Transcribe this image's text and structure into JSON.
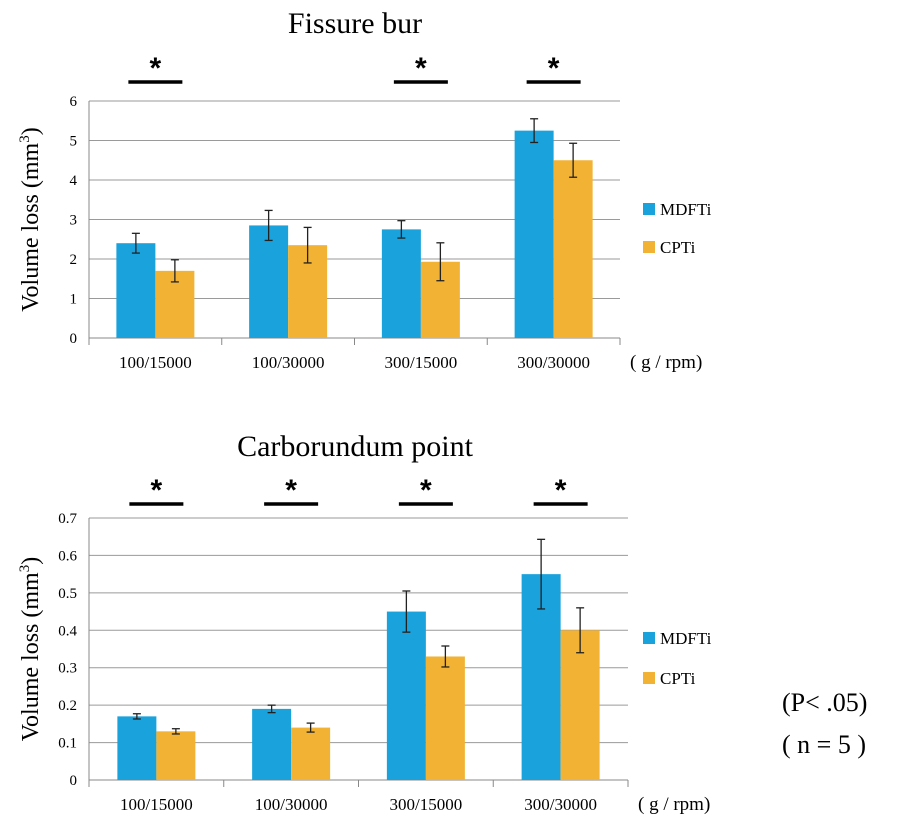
{
  "chart_data": [
    {
      "type": "bar",
      "title": "Fissure bur",
      "ylabel": "Volume loss (mm³)",
      "ylabel_main": "Volume loss (mm",
      "ylabel_sup": "3",
      "ylabel_close": ")",
      "x_unit": "( g / rpm)",
      "categories": [
        "100/15000",
        "100/30000",
        "300/15000",
        "300/30000"
      ],
      "ylim": [
        0,
        6
      ],
      "yticks": [
        0,
        1,
        2,
        3,
        4,
        5,
        6
      ],
      "ytick_labels": [
        "0",
        "1",
        "2",
        "3",
        "4",
        "5",
        "6"
      ],
      "grid": true,
      "legend_position": "right",
      "series": [
        {
          "name": "MDFTi",
          "color": "#1aa2dc",
          "values": [
            2.4,
            2.85,
            2.75,
            5.25
          ],
          "errors": [
            0.25,
            0.38,
            0.22,
            0.3
          ]
        },
        {
          "name": "CPTi",
          "color": "#f2b233",
          "values": [
            1.7,
            2.35,
            1.93,
            4.5
          ],
          "errors": [
            0.28,
            0.45,
            0.48,
            0.43
          ]
        }
      ],
      "significance": [
        {
          "category": "100/15000",
          "label": "*"
        },
        {
          "category": "300/15000",
          "label": "*"
        },
        {
          "category": "300/30000",
          "label": "*"
        }
      ]
    },
    {
      "type": "bar",
      "title": "Carborundum point",
      "ylabel": "Volume loss (mm³)",
      "ylabel_main": "Volume loss (mm",
      "ylabel_sup": "3",
      "ylabel_close": ")",
      "x_unit": "( g / rpm)",
      "categories": [
        "100/15000",
        "100/30000",
        "300/15000",
        "300/30000"
      ],
      "ylim": [
        0,
        0.7
      ],
      "yticks": [
        0,
        0.1,
        0.2,
        0.3,
        0.4,
        0.5,
        0.6,
        0.7
      ],
      "ytick_labels": [
        "0",
        "0.1",
        "0.2",
        "0.3",
        "0.4",
        "0.5",
        "0.6",
        "0.7"
      ],
      "grid": true,
      "legend_position": "right",
      "series": [
        {
          "name": "MDFTi",
          "color": "#1aa2dc",
          "values": [
            0.17,
            0.19,
            0.45,
            0.55
          ],
          "errors": [
            0.007,
            0.01,
            0.055,
            0.093
          ]
        },
        {
          "name": "CPTi",
          "color": "#f2b233",
          "values": [
            0.13,
            0.14,
            0.33,
            0.4
          ],
          "errors": [
            0.007,
            0.012,
            0.028,
            0.06
          ]
        }
      ],
      "significance": [
        {
          "category": "100/15000",
          "label": "*"
        },
        {
          "category": "100/30000",
          "label": "*"
        },
        {
          "category": "300/15000",
          "label": "*"
        },
        {
          "category": "300/30000",
          "label": "*"
        }
      ]
    }
  ],
  "notes": {
    "p_value": "(P< .05)",
    "n": "( n = 5 )"
  }
}
